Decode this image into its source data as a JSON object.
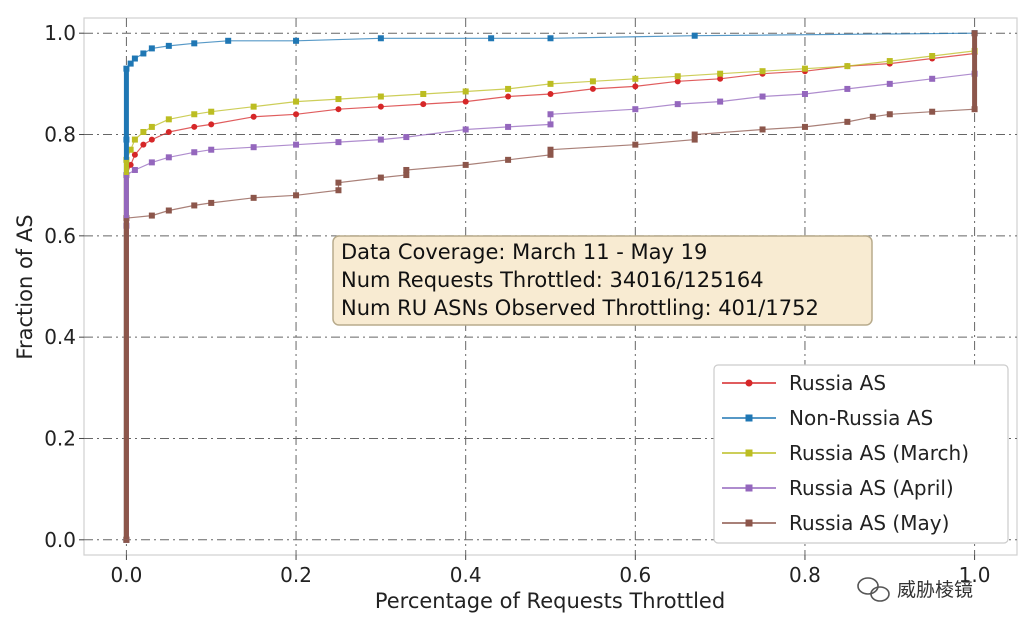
{
  "chart_data": {
    "type": "line",
    "title": "",
    "xlabel": "Percentage of Requests Throttled",
    "ylabel": "Fraction of AS",
    "xlim": [
      -0.05,
      1.05
    ],
    "ylim": [
      -0.03,
      1.03
    ],
    "xticks": [
      "0.0",
      "0.2",
      "0.4",
      "0.6",
      "0.8",
      "1.0"
    ],
    "yticks": [
      "0.0",
      "0.2",
      "0.4",
      "0.6",
      "0.8",
      "1.0"
    ],
    "grid": true,
    "legend_position": "bottom-right",
    "annotation": [
      "Data Coverage: March 11 - May 19",
      "Num Requests Throttled: 34016/125164",
      "Num RU ASNs Observed Throttling: 401/1752"
    ],
    "watermark": "威胁棱镜",
    "series": [
      {
        "name": "Russia AS",
        "color": "#d62728",
        "marker": "circle",
        "points": [
          [
            0.0,
            0.0
          ],
          [
            0.0,
            0.72
          ],
          [
            0.005,
            0.74
          ],
          [
            0.01,
            0.76
          ],
          [
            0.02,
            0.78
          ],
          [
            0.03,
            0.79
          ],
          [
            0.05,
            0.805
          ],
          [
            0.08,
            0.815
          ],
          [
            0.1,
            0.82
          ],
          [
            0.15,
            0.835
          ],
          [
            0.2,
            0.84
          ],
          [
            0.25,
            0.85
          ],
          [
            0.3,
            0.855
          ],
          [
            0.35,
            0.86
          ],
          [
            0.4,
            0.865
          ],
          [
            0.45,
            0.875
          ],
          [
            0.5,
            0.88
          ],
          [
            0.55,
            0.89
          ],
          [
            0.6,
            0.895
          ],
          [
            0.65,
            0.905
          ],
          [
            0.7,
            0.91
          ],
          [
            0.75,
            0.92
          ],
          [
            0.8,
            0.925
          ],
          [
            0.85,
            0.935
          ],
          [
            0.9,
            0.94
          ],
          [
            0.95,
            0.95
          ],
          [
            1.0,
            0.96
          ]
        ]
      },
      {
        "name": "Non-Russia AS",
        "color": "#1f77b4",
        "marker": "square",
        "points": [
          [
            0.0,
            0.0
          ],
          [
            0.0,
            0.79
          ],
          [
            0.0,
            0.93
          ],
          [
            0.005,
            0.94
          ],
          [
            0.01,
            0.95
          ],
          [
            0.02,
            0.96
          ],
          [
            0.03,
            0.97
          ],
          [
            0.05,
            0.975
          ],
          [
            0.08,
            0.98
          ],
          [
            0.12,
            0.985
          ],
          [
            0.2,
            0.985
          ],
          [
            0.3,
            0.99
          ],
          [
            0.43,
            0.99
          ],
          [
            0.5,
            0.99
          ],
          [
            0.67,
            0.995
          ],
          [
            1.0,
            1.0
          ]
        ]
      },
      {
        "name": "Russia AS (March)",
        "color": "#bcbd22",
        "marker": "square",
        "points": [
          [
            0.0,
            0.0
          ],
          [
            0.0,
            0.75
          ],
          [
            0.005,
            0.77
          ],
          [
            0.01,
            0.79
          ],
          [
            0.02,
            0.805
          ],
          [
            0.03,
            0.815
          ],
          [
            0.05,
            0.83
          ],
          [
            0.08,
            0.84
          ],
          [
            0.1,
            0.845
          ],
          [
            0.15,
            0.855
          ],
          [
            0.2,
            0.865
          ],
          [
            0.25,
            0.87
          ],
          [
            0.3,
            0.875
          ],
          [
            0.35,
            0.88
          ],
          [
            0.4,
            0.885
          ],
          [
            0.45,
            0.89
          ],
          [
            0.5,
            0.9
          ],
          [
            0.55,
            0.905
          ],
          [
            0.6,
            0.91
          ],
          [
            0.65,
            0.915
          ],
          [
            0.7,
            0.92
          ],
          [
            0.75,
            0.925
          ],
          [
            0.8,
            0.93
          ],
          [
            0.85,
            0.935
          ],
          [
            0.9,
            0.945
          ],
          [
            0.95,
            0.955
          ],
          [
            1.0,
            0.965
          ]
        ]
      },
      {
        "name": "Russia AS (April)",
        "color": "#9467bd",
        "marker": "square",
        "points": [
          [
            0.0,
            0.0
          ],
          [
            0.0,
            0.62
          ],
          [
            0.0,
            0.72
          ],
          [
            0.01,
            0.73
          ],
          [
            0.03,
            0.745
          ],
          [
            0.05,
            0.755
          ],
          [
            0.08,
            0.765
          ],
          [
            0.1,
            0.77
          ],
          [
            0.15,
            0.775
          ],
          [
            0.2,
            0.78
          ],
          [
            0.25,
            0.785
          ],
          [
            0.3,
            0.79
          ],
          [
            0.33,
            0.795
          ],
          [
            0.4,
            0.81
          ],
          [
            0.45,
            0.815
          ],
          [
            0.5,
            0.82
          ],
          [
            0.5,
            0.84
          ],
          [
            0.6,
            0.85
          ],
          [
            0.65,
            0.86
          ],
          [
            0.7,
            0.865
          ],
          [
            0.75,
            0.875
          ],
          [
            0.8,
            0.88
          ],
          [
            0.85,
            0.89
          ],
          [
            0.9,
            0.9
          ],
          [
            0.95,
            0.91
          ],
          [
            1.0,
            0.92
          ]
        ]
      },
      {
        "name": "Russia AS (May)",
        "color": "#8c564b",
        "marker": "square",
        "points": [
          [
            0.0,
            0.0
          ],
          [
            0.0,
            0.635
          ],
          [
            0.03,
            0.64
          ],
          [
            0.05,
            0.65
          ],
          [
            0.08,
            0.66
          ],
          [
            0.1,
            0.665
          ],
          [
            0.15,
            0.675
          ],
          [
            0.2,
            0.68
          ],
          [
            0.25,
            0.69
          ],
          [
            0.25,
            0.705
          ],
          [
            0.3,
            0.715
          ],
          [
            0.33,
            0.72
          ],
          [
            0.33,
            0.73
          ],
          [
            0.4,
            0.74
          ],
          [
            0.45,
            0.75
          ],
          [
            0.5,
            0.76
          ],
          [
            0.5,
            0.77
          ],
          [
            0.6,
            0.78
          ],
          [
            0.67,
            0.79
          ],
          [
            0.67,
            0.8
          ],
          [
            0.75,
            0.81
          ],
          [
            0.8,
            0.815
          ],
          [
            0.85,
            0.825
          ],
          [
            0.88,
            0.835
          ],
          [
            0.9,
            0.84
          ],
          [
            0.95,
            0.845
          ],
          [
            1.0,
            0.85
          ],
          [
            1.0,
            1.0
          ]
        ]
      }
    ]
  }
}
